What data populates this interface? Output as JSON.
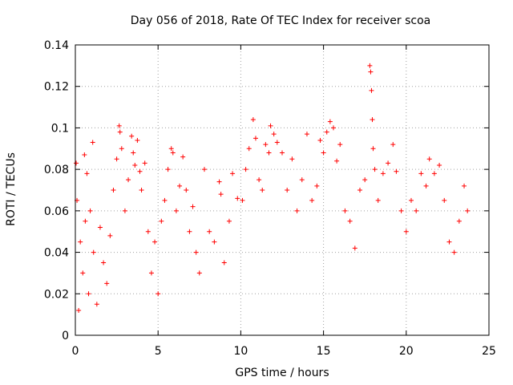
{
  "chart_data": {
    "type": "scatter",
    "title": "Day 056 of 2018, Rate Of TEC Index for receiver scoa",
    "xlabel": "GPS time / hours",
    "ylabel": "ROTI / TECUs",
    "xlim": [
      0,
      25
    ],
    "ylim": [
      0,
      0.14
    ],
    "x_ticks": [
      0,
      5,
      10,
      15,
      20,
      25
    ],
    "y_ticks": [
      0,
      0.02,
      0.04,
      0.06,
      0.08,
      0.1,
      0.12,
      0.14
    ],
    "grid": true,
    "marker": "+",
    "color": "#ff0000",
    "series": [
      {
        "points": [
          [
            0.05,
            0.083
          ],
          [
            0.1,
            0.065
          ],
          [
            0.2,
            0.012
          ],
          [
            0.3,
            0.045
          ],
          [
            0.45,
            0.03
          ],
          [
            0.55,
            0.087
          ],
          [
            0.6,
            0.055
          ],
          [
            0.7,
            0.078
          ],
          [
            0.8,
            0.02
          ],
          [
            0.9,
            0.06
          ],
          [
            1.05,
            0.093
          ],
          [
            1.1,
            0.04
          ],
          [
            1.3,
            0.015
          ],
          [
            1.5,
            0.052
          ],
          [
            1.7,
            0.035
          ],
          [
            1.9,
            0.025
          ],
          [
            2.1,
            0.048
          ],
          [
            2.3,
            0.07
          ],
          [
            2.5,
            0.085
          ],
          [
            2.65,
            0.101
          ],
          [
            2.7,
            0.098
          ],
          [
            2.8,
            0.09
          ],
          [
            3.0,
            0.06
          ],
          [
            3.2,
            0.075
          ],
          [
            3.4,
            0.096
          ],
          [
            3.5,
            0.088
          ],
          [
            3.6,
            0.082
          ],
          [
            3.75,
            0.094
          ],
          [
            3.9,
            0.079
          ],
          [
            4.0,
            0.07
          ],
          [
            4.2,
            0.083
          ],
          [
            4.4,
            0.05
          ],
          [
            4.6,
            0.03
          ],
          [
            4.8,
            0.045
          ],
          [
            5.0,
            0.02
          ],
          [
            5.2,
            0.055
          ],
          [
            5.4,
            0.065
          ],
          [
            5.6,
            0.08
          ],
          [
            5.8,
            0.09
          ],
          [
            5.9,
            0.088
          ],
          [
            6.1,
            0.06
          ],
          [
            6.3,
            0.072
          ],
          [
            6.5,
            0.086
          ],
          [
            6.7,
            0.07
          ],
          [
            6.9,
            0.05
          ],
          [
            7.1,
            0.062
          ],
          [
            7.3,
            0.04
          ],
          [
            7.5,
            0.03
          ],
          [
            7.8,
            0.08
          ],
          [
            8.1,
            0.05
          ],
          [
            8.4,
            0.045
          ],
          [
            8.7,
            0.074
          ],
          [
            8.8,
            0.068
          ],
          [
            9.0,
            0.035
          ],
          [
            9.3,
            0.055
          ],
          [
            9.5,
            0.078
          ],
          [
            9.8,
            0.066
          ],
          [
            10.1,
            0.065
          ],
          [
            10.3,
            0.08
          ],
          [
            10.5,
            0.09
          ],
          [
            10.75,
            0.104
          ],
          [
            10.9,
            0.095
          ],
          [
            11.1,
            0.075
          ],
          [
            11.3,
            0.07
          ],
          [
            11.5,
            0.092
          ],
          [
            11.7,
            0.088
          ],
          [
            11.8,
            0.101
          ],
          [
            12.0,
            0.097
          ],
          [
            12.2,
            0.093
          ],
          [
            12.5,
            0.088
          ],
          [
            12.8,
            0.07
          ],
          [
            13.1,
            0.085
          ],
          [
            13.4,
            0.06
          ],
          [
            13.7,
            0.075
          ],
          [
            14.0,
            0.097
          ],
          [
            14.3,
            0.065
          ],
          [
            14.6,
            0.072
          ],
          [
            14.8,
            0.094
          ],
          [
            15.0,
            0.088
          ],
          [
            15.2,
            0.098
          ],
          [
            15.4,
            0.103
          ],
          [
            15.6,
            0.1
          ],
          [
            15.8,
            0.084
          ],
          [
            16.0,
            0.092
          ],
          [
            16.3,
            0.06
          ],
          [
            16.6,
            0.055
          ],
          [
            16.9,
            0.042
          ],
          [
            17.2,
            0.07
          ],
          [
            17.5,
            0.075
          ],
          [
            17.8,
            0.13
          ],
          [
            17.85,
            0.127
          ],
          [
            17.9,
            0.118
          ],
          [
            17.95,
            0.104
          ],
          [
            18.0,
            0.09
          ],
          [
            18.1,
            0.08
          ],
          [
            18.3,
            0.065
          ],
          [
            18.6,
            0.078
          ],
          [
            18.9,
            0.083
          ],
          [
            19.2,
            0.092
          ],
          [
            19.4,
            0.079
          ],
          [
            19.7,
            0.06
          ],
          [
            20.0,
            0.05
          ],
          [
            20.3,
            0.065
          ],
          [
            20.6,
            0.06
          ],
          [
            20.9,
            0.078
          ],
          [
            21.2,
            0.072
          ],
          [
            21.4,
            0.085
          ],
          [
            21.7,
            0.078
          ],
          [
            22.0,
            0.082
          ],
          [
            22.3,
            0.065
          ],
          [
            22.6,
            0.045
          ],
          [
            22.9,
            0.04
          ],
          [
            23.2,
            0.055
          ],
          [
            23.5,
            0.072
          ],
          [
            23.7,
            0.06
          ]
        ]
      }
    ]
  }
}
